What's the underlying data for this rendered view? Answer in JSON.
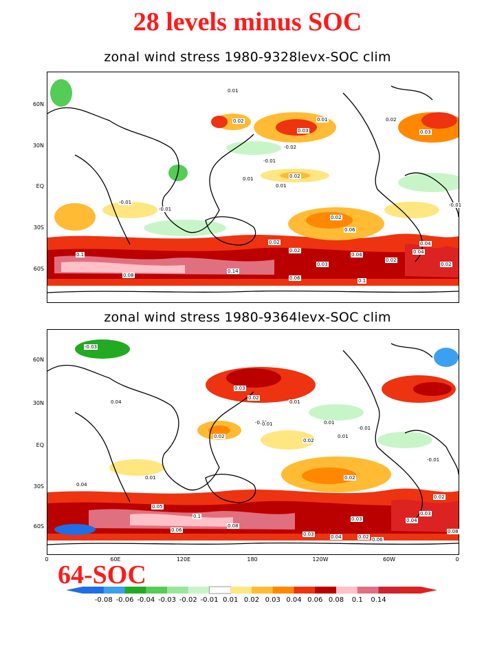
{
  "slide_title": "28 levels minus SOC",
  "run_label": "64-SOC",
  "panels": [
    {
      "title": "zonal wind stress 1980-9328levx-SOC clim",
      "lat_labels": [
        "60N",
        "30N",
        "EQ",
        "30S",
        "60S"
      ],
      "contour_labels": [
        "0.01",
        "0.02",
        "0.03",
        "0.01",
        "0.02",
        "0.03",
        "-0.02",
        "-0.01",
        "0.02",
        "0.01",
        "-0.01",
        "0.01",
        "-0.01",
        "0.02",
        "0.02",
        "0.02",
        "0.03",
        "0.04",
        "0.06",
        "0.08",
        "0.1",
        "0.14",
        "0.06",
        "0.1",
        "0.04",
        "0.02",
        "0.02",
        "0.04",
        "-0.01"
      ]
    },
    {
      "title": "zonal wind stress 1980-9364levx-SOC clim",
      "lat_labels": [
        "60N",
        "30N",
        "EQ",
        "30S",
        "60S"
      ],
      "lon_labels": [
        "0",
        "60E",
        "120E",
        "180",
        "120W",
        "60W",
        "0"
      ],
      "contour_labels": [
        "-0.03",
        "0.04",
        "0.03",
        "0.02",
        "0.01",
        "0.01",
        "-0.01",
        "-0.01",
        "0.01",
        "0.02",
        "-0.01",
        "0.02",
        "0.01",
        "0.01",
        "0.02",
        "0.03",
        "0.04",
        "0.06",
        "0.08",
        "0.1",
        "0.06",
        "0.05",
        "0.04",
        "0.03",
        "0.02",
        "0.04",
        "0.03",
        "0.08",
        "0.02"
      ]
    }
  ],
  "colorbar": {
    "labels": [
      "-0.08",
      "-0.06",
      "-0.04",
      "-0.03",
      "-0.02",
      "-0.01",
      "0.01",
      "0.02",
      "0.03",
      "0.04",
      "0.06",
      "0.08",
      "0.1",
      "0.14"
    ],
    "colors": [
      "#1e6ee6",
      "#3ca0f0",
      "#22aa22",
      "#55cc55",
      "#99e699",
      "#c8f5c8",
      "#ffffff",
      "#ffe680",
      "#ffbb33",
      "#ff8800",
      "#ee3311",
      "#bb0000",
      "#ffc0c8",
      "#e07080",
      "#cc2233",
      "#dd2222"
    ]
  }
}
